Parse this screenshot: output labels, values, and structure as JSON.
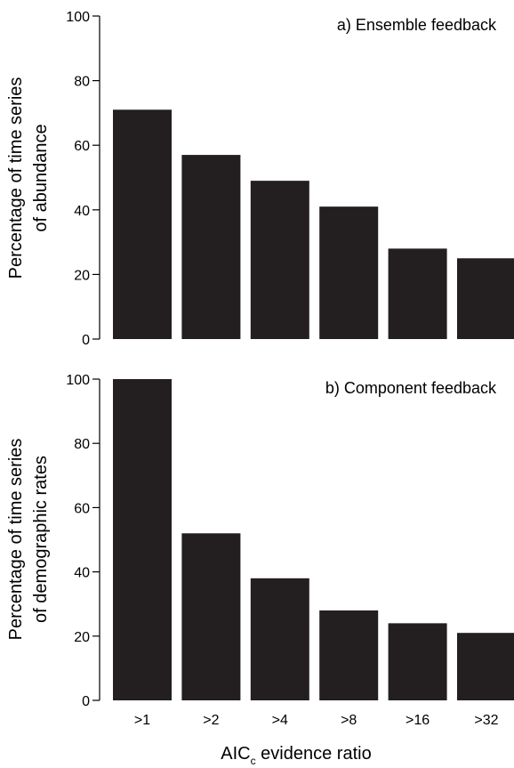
{
  "chart_data": [
    {
      "type": "bar",
      "title": "a) Ensemble feedback",
      "ylabel_lines": [
        "Percentage of time series",
        "of abundance"
      ],
      "categories": [
        ">1",
        ">2",
        ">4",
        ">8",
        ">16",
        ">32"
      ],
      "values": [
        71,
        57,
        49,
        41,
        28,
        25
      ],
      "yticks": [
        0,
        20,
        40,
        60,
        80,
        100
      ],
      "ylim": [
        0,
        100
      ],
      "bar_color": "#231f20",
      "grid": false
    },
    {
      "type": "bar",
      "title": "b) Component feedback",
      "ylabel_lines": [
        "Percentage of time series",
        "of demographic rates"
      ],
      "categories": [
        ">1",
        ">2",
        ">4",
        ">8",
        ">16",
        ">32"
      ],
      "values": [
        100,
        52,
        38,
        28,
        24,
        21
      ],
      "yticks": [
        0,
        20,
        40,
        60,
        80,
        100
      ],
      "ylim": [
        0,
        100
      ],
      "bar_color": "#231f20",
      "grid": false
    }
  ],
  "xlabel": {
    "main": "AIC",
    "subscript": "c",
    "rest": " evidence ratio"
  }
}
